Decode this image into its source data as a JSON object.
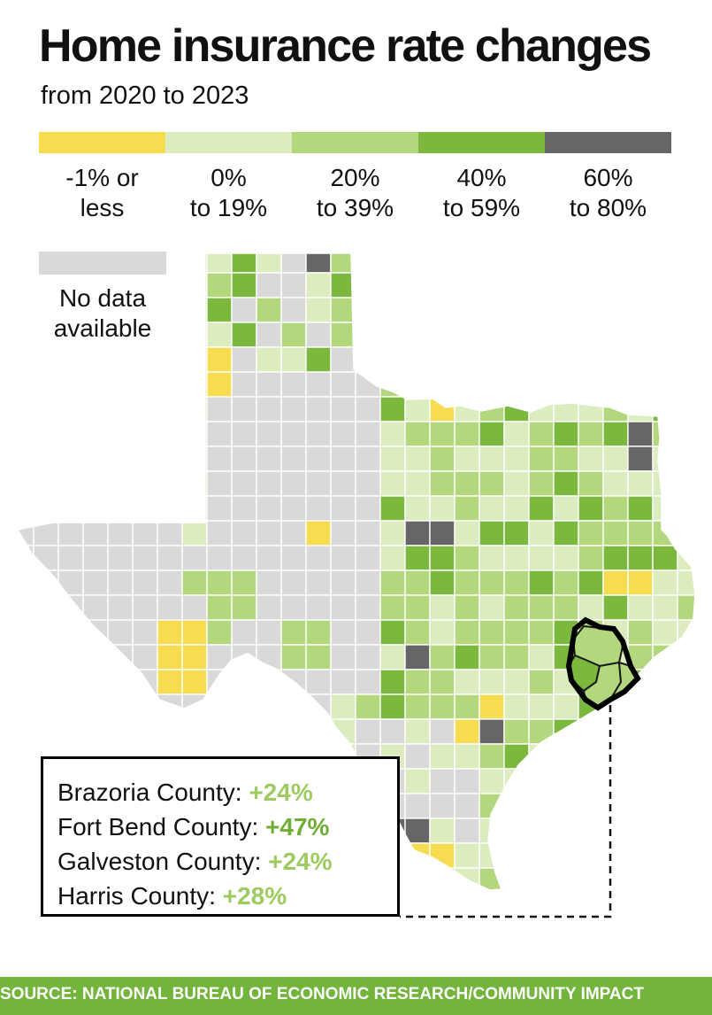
{
  "header": {
    "title": "Home insurance rate changes",
    "subtitle": "from 2020 to 2023"
  },
  "colors": {
    "decrease": "#f6dc4e",
    "band_0_19": "#dbecbf",
    "band_20_39": "#b2d77d",
    "band_40_59": "#7bb83d",
    "band_60_80": "#666666",
    "no_data": "#d9d9d9",
    "county_stroke": "#ffffff",
    "region_outline": "#000000",
    "footer_bg": "#72b53a",
    "value_light": "#9dcb5f",
    "value_dark": "#6fae35",
    "leader_line": "#111111"
  },
  "legend": {
    "items": [
      {
        "line1": "-1% or",
        "line2": "less",
        "color": "#f6dc4e"
      },
      {
        "line1": "0%",
        "line2": "to 19%",
        "color": "#dbecbf"
      },
      {
        "line1": "20%",
        "line2": "to 39%",
        "color": "#b2d77d"
      },
      {
        "line1": "40%",
        "line2": "to 59%",
        "color": "#7bb83d"
      },
      {
        "line1": "60%",
        "line2": "to 80%",
        "color": "#666666"
      }
    ],
    "no_data": {
      "line1": "No data",
      "line2": "available",
      "color": "#d9d9d9"
    }
  },
  "callout": {
    "items": [
      {
        "county": "Brazoria County:",
        "value": "+24%",
        "color": "#9dcb5f"
      },
      {
        "county": "Fort Bend County:",
        "value": "+47%",
        "color": "#6fae35"
      },
      {
        "county": "Galveston County:",
        "value": "+24%",
        "color": "#9dcb5f"
      },
      {
        "county": "Harris County:",
        "value": "+28%",
        "color": "#9dcb5f"
      }
    ]
  },
  "footer": {
    "source": "SOURCE: NATIONAL BUREAU OF ECONOMIC RESEARCH/COMMUNITY IMPACT"
  },
  "map": {
    "highlighted_counties": [
      "Brazoria County",
      "Fort Bend County",
      "Galveston County",
      "Harris County"
    ],
    "highlight_colors": {
      "Brazoria County": "#b2d77d",
      "Fort Bend County": "#7bb83d",
      "Galveston County": "#b2d77d",
      "Harris County": "#b2d77d"
    }
  }
}
